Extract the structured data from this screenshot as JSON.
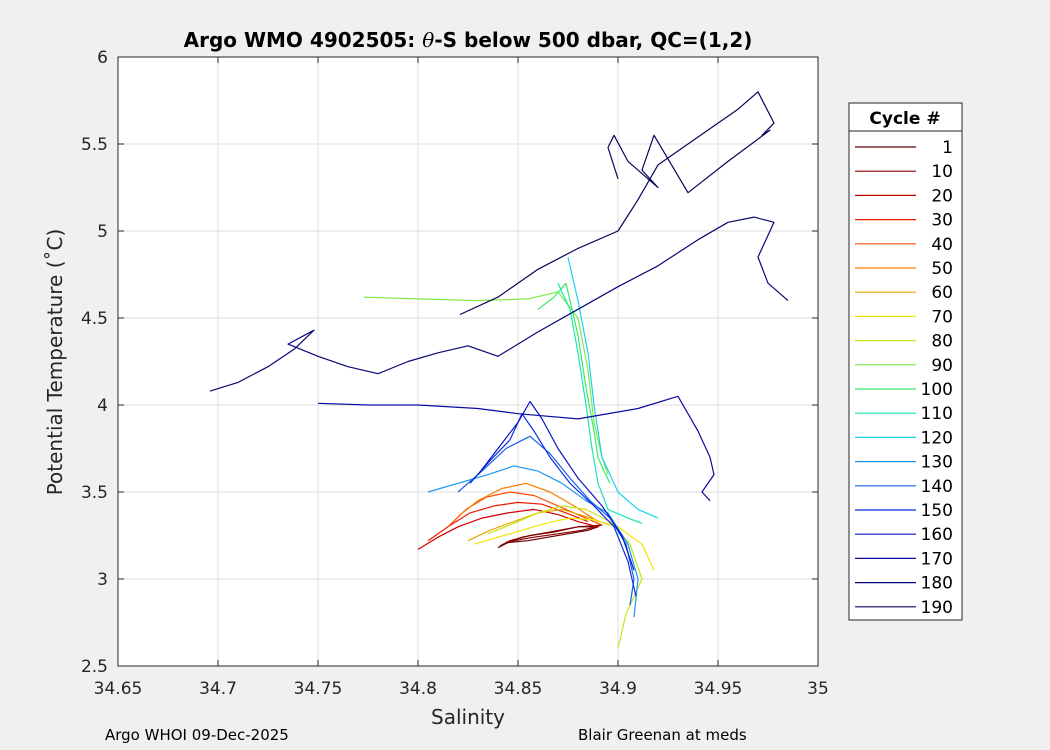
{
  "chart_data": {
    "type": "line",
    "title_parts": [
      "Argo WMO 4902505: ",
      "θ",
      "-S below 500 dbar,  QC=(1,2)"
    ],
    "xlabel": "Salinity",
    "ylabel": "Potential Temperature (˚C)",
    "xlim": [
      34.65,
      35.0
    ],
    "ylim": [
      2.5,
      6.0
    ],
    "xticks": [
      "34.65",
      "34.7",
      "34.75",
      "34.8",
      "34.85",
      "34.9",
      "34.95",
      "35"
    ],
    "yticks": [
      "2.5",
      "3",
      "3.5",
      "4",
      "4.5",
      "5",
      "5.5",
      "6"
    ],
    "grid": true,
    "legend": {
      "title": "Cycle #",
      "position": "outside-right",
      "entries": [
        "1",
        "10",
        "20",
        "30",
        "40",
        "50",
        "60",
        "70",
        "80",
        "90",
        "100",
        "110",
        "120",
        "130",
        "140",
        "150",
        "160",
        "170",
        "180",
        "190"
      ],
      "colors": [
        "#5a0000",
        "#8a0000",
        "#c00000",
        "#e81a00",
        "#ff4a00",
        "#ff7a00",
        "#e6a800",
        "#f2e600",
        "#c4e81a",
        "#7fe84a",
        "#3ce86a",
        "#1ae6b4",
        "#1ad2f0",
        "#1a96f0",
        "#1460e6",
        "#0a2ee0",
        "#0a14c8",
        "#0a0aa0",
        "#080878",
        "#06065a"
      ]
    },
    "series": [
      {
        "color": "#6a0000",
        "x": [
          34.84,
          34.845,
          34.855,
          34.865,
          34.875,
          34.885,
          34.89,
          34.88,
          34.868,
          34.856,
          34.846,
          34.841
        ],
        "y": [
          3.18,
          3.21,
          3.22,
          3.24,
          3.26,
          3.28,
          3.3,
          3.3,
          3.27,
          3.25,
          3.22,
          3.19
        ]
      },
      {
        "color": "#8a0000",
        "x": [
          34.843,
          34.848,
          34.858,
          34.87,
          34.882,
          34.892,
          34.88,
          34.866,
          34.852,
          34.844
        ],
        "y": [
          3.2,
          3.22,
          3.24,
          3.26,
          3.28,
          3.31,
          3.3,
          3.27,
          3.24,
          3.21
        ]
      },
      {
        "color": "#d00000",
        "x": [
          34.8,
          34.81,
          34.82,
          34.832,
          34.845,
          34.858,
          34.87,
          34.88,
          34.89
        ],
        "y": [
          3.17,
          3.24,
          3.3,
          3.35,
          3.38,
          3.4,
          3.37,
          3.33,
          3.3
        ]
      },
      {
        "color": "#e81a00",
        "x": [
          34.805,
          34.815,
          34.826,
          34.838,
          34.85,
          34.862,
          34.874,
          34.885
        ],
        "y": [
          3.22,
          3.3,
          3.38,
          3.42,
          3.44,
          3.43,
          3.38,
          3.33
        ]
      },
      {
        "color": "#ff4a00",
        "x": [
          34.815,
          34.824,
          34.834,
          34.846,
          34.858,
          34.87,
          34.882,
          34.892
        ],
        "y": [
          3.3,
          3.4,
          3.47,
          3.5,
          3.48,
          3.42,
          3.36,
          3.31
        ]
      },
      {
        "color": "#ff7a00",
        "x": [
          34.82,
          34.83,
          34.842,
          34.854,
          34.866,
          34.878,
          34.89
        ],
        "y": [
          3.36,
          3.45,
          3.52,
          3.55,
          3.5,
          3.42,
          3.33
        ]
      },
      {
        "color": "#e6a800",
        "x": [
          34.825,
          34.836,
          34.848,
          34.86,
          34.872,
          34.884,
          34.896
        ],
        "y": [
          3.22,
          3.28,
          3.33,
          3.38,
          3.4,
          3.36,
          3.31
        ]
      },
      {
        "color": "#f2e600",
        "x": [
          34.828,
          34.84,
          34.852,
          34.864,
          34.876,
          34.888,
          34.9,
          34.912,
          34.918
        ],
        "y": [
          3.2,
          3.24,
          3.28,
          3.32,
          3.35,
          3.34,
          3.3,
          3.2,
          3.05
        ]
      },
      {
        "color": "#c4e81a",
        "x": [
          34.835,
          34.848,
          34.86,
          34.872,
          34.884,
          34.896,
          34.906,
          34.912,
          34.904,
          34.9
        ],
        "y": [
          3.26,
          3.32,
          3.38,
          3.42,
          3.4,
          3.33,
          3.2,
          3.0,
          2.8,
          2.6
        ]
      },
      {
        "color": "#7fe84a",
        "x": [
          34.773,
          34.8,
          34.83,
          34.855,
          34.87,
          34.88,
          34.885,
          34.888,
          34.892,
          34.895
        ],
        "y": [
          4.62,
          4.61,
          4.6,
          4.61,
          4.65,
          4.5,
          4.2,
          3.9,
          3.7,
          3.6
        ]
      },
      {
        "color": "#3ce86a",
        "x": [
          34.86,
          34.868,
          34.874,
          34.88,
          34.884,
          34.888,
          34.89,
          34.893,
          34.896
        ],
        "y": [
          4.55,
          4.62,
          4.7,
          4.4,
          4.1,
          3.85,
          3.7,
          3.62,
          3.55
        ]
      },
      {
        "color": "#1ae6b4",
        "x": [
          34.87,
          34.876,
          34.88,
          34.884,
          34.887,
          34.89,
          34.895,
          34.905,
          34.912
        ],
        "y": [
          4.7,
          4.55,
          4.3,
          4.0,
          3.75,
          3.55,
          3.4,
          3.35,
          3.32
        ]
      },
      {
        "color": "#1ad2f0",
        "x": [
          34.875,
          34.88,
          34.885,
          34.888,
          34.892,
          34.9,
          34.91,
          34.92
        ],
        "y": [
          4.85,
          4.6,
          4.3,
          4.0,
          3.7,
          3.5,
          3.4,
          3.35
        ]
      },
      {
        "color": "#1a96f0",
        "x": [
          34.805,
          34.82,
          34.835,
          34.848,
          34.86,
          34.872,
          34.884,
          34.895,
          34.905,
          34.91,
          34.908
        ],
        "y": [
          3.5,
          3.55,
          3.6,
          3.65,
          3.62,
          3.55,
          3.45,
          3.38,
          3.2,
          3.0,
          2.78
        ]
      },
      {
        "color": "#1460e6",
        "x": [
          34.82,
          34.832,
          34.844,
          34.856,
          34.866,
          34.876,
          34.886,
          34.896,
          34.904,
          34.908,
          34.906
        ],
        "y": [
          3.5,
          3.62,
          3.75,
          3.82,
          3.72,
          3.58,
          3.45,
          3.35,
          3.2,
          3.0,
          2.85
        ]
      },
      {
        "color": "#0a2ee0",
        "x": [
          34.826,
          34.836,
          34.846,
          34.852,
          34.858,
          34.866,
          34.876,
          34.888,
          34.898,
          34.905,
          34.909
        ],
        "y": [
          3.55,
          3.68,
          3.8,
          3.95,
          3.85,
          3.7,
          3.55,
          3.42,
          3.3,
          3.1,
          2.9
        ]
      },
      {
        "color": "#0a14c8",
        "x": [
          34.83,
          34.84,
          34.85,
          34.856,
          34.862,
          34.87,
          34.88,
          34.892,
          34.902,
          34.908
        ],
        "y": [
          3.6,
          3.75,
          3.9,
          4.02,
          3.92,
          3.75,
          3.58,
          3.42,
          3.25,
          3.05
        ]
      },
      {
        "color": "#0a0aa0",
        "x": [
          34.75,
          34.775,
          34.8,
          34.83,
          34.85,
          34.88,
          34.91,
          34.93,
          34.94,
          34.946,
          34.948,
          34.942,
          34.946
        ],
        "y": [
          4.01,
          4.0,
          4.0,
          3.98,
          3.95,
          3.92,
          3.98,
          4.05,
          3.85,
          3.7,
          3.6,
          3.5,
          3.45
        ]
      },
      {
        "color": "#080878",
        "x": [
          34.696,
          34.71,
          34.725,
          34.738,
          34.748,
          34.735,
          34.75,
          34.765,
          34.78,
          34.795,
          34.81,
          34.825,
          34.84,
          34.86,
          34.88,
          34.9,
          34.92,
          34.94,
          34.955,
          34.968,
          34.978,
          34.97,
          34.975,
          34.985
        ],
        "y": [
          4.08,
          4.13,
          4.22,
          4.32,
          4.43,
          4.35,
          4.28,
          4.22,
          4.18,
          4.25,
          4.3,
          4.34,
          4.28,
          4.42,
          4.55,
          4.68,
          4.8,
          4.95,
          5.05,
          5.08,
          5.05,
          4.85,
          4.7,
          4.6
        ]
      },
      {
        "color": "#06065a",
        "x": [
          34.821,
          34.84,
          34.86,
          34.88,
          34.9,
          34.91,
          34.92,
          34.935,
          34.95,
          34.96,
          34.97,
          34.978,
          34.972,
          34.976,
          34.955,
          34.935,
          34.918,
          34.912,
          34.92,
          34.905,
          34.898,
          34.895,
          34.9
        ],
        "y": [
          4.52,
          4.62,
          4.78,
          4.9,
          5.0,
          5.18,
          5.38,
          5.5,
          5.62,
          5.7,
          5.8,
          5.62,
          5.55,
          5.58,
          5.4,
          5.22,
          5.55,
          5.35,
          5.25,
          5.4,
          5.55,
          5.48,
          5.3
        ]
      }
    ]
  },
  "footer": {
    "left": "Argo WHOI 09-Dec-2025",
    "right": "Blair Greenan at meds"
  }
}
